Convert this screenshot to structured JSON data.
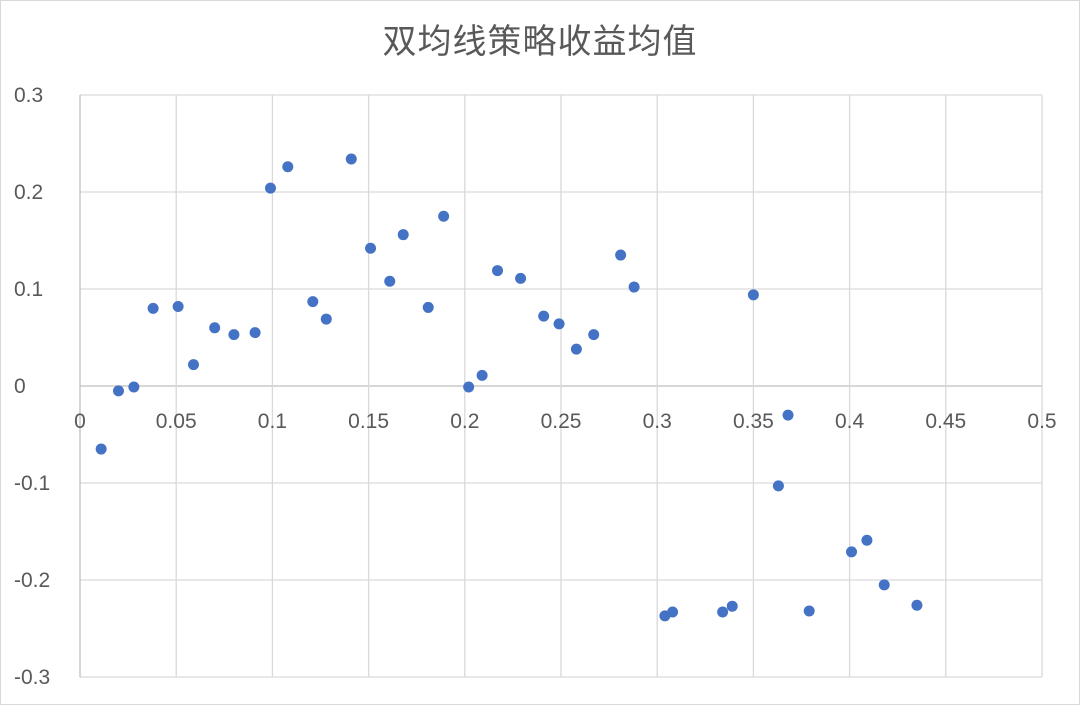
{
  "chart_data": {
    "type": "scatter",
    "title": "双均线策略收益均值",
    "xlabel": "",
    "ylabel": "",
    "xlim": [
      0,
      0.5
    ],
    "ylim": [
      -0.3,
      0.3
    ],
    "x_ticks": [
      "0",
      "0.05",
      "0.1",
      "0.15",
      "0.2",
      "0.25",
      "0.3",
      "0.35",
      "0.4",
      "0.45",
      "0.5"
    ],
    "y_ticks": [
      "0.3",
      "0.2",
      "0.1",
      "0",
      "-0.1",
      "-0.2",
      "-0.3"
    ],
    "grid": true,
    "legend": "none",
    "colors": {
      "marker": "#4472c4",
      "grid": "#d9d9d9",
      "text": "#595959"
    },
    "series": [
      {
        "points": [
          [
            0.011,
            -0.065
          ],
          [
            0.02,
            -0.005
          ],
          [
            0.028,
            -0.001
          ],
          [
            0.038,
            0.08
          ],
          [
            0.051,
            0.082
          ],
          [
            0.059,
            0.022
          ],
          [
            0.07,
            0.06
          ],
          [
            0.08,
            0.053
          ],
          [
            0.091,
            0.055
          ],
          [
            0.099,
            0.204
          ],
          [
            0.108,
            0.226
          ],
          [
            0.121,
            0.087
          ],
          [
            0.128,
            0.069
          ],
          [
            0.141,
            0.234
          ],
          [
            0.151,
            0.142
          ],
          [
            0.161,
            0.108
          ],
          [
            0.168,
            0.156
          ],
          [
            0.181,
            0.081
          ],
          [
            0.189,
            0.175
          ],
          [
            0.202,
            -0.001
          ],
          [
            0.209,
            0.011
          ],
          [
            0.217,
            0.119
          ],
          [
            0.229,
            0.111
          ],
          [
            0.241,
            0.072
          ],
          [
            0.249,
            0.064
          ],
          [
            0.258,
            0.038
          ],
          [
            0.267,
            0.053
          ],
          [
            0.281,
            0.135
          ],
          [
            0.288,
            0.102
          ],
          [
            0.304,
            -0.237
          ],
          [
            0.308,
            -0.233
          ],
          [
            0.334,
            -0.233
          ],
          [
            0.339,
            -0.227
          ],
          [
            0.35,
            0.094
          ],
          [
            0.363,
            -0.103
          ],
          [
            0.368,
            -0.03
          ],
          [
            0.379,
            -0.232
          ],
          [
            0.401,
            -0.171
          ],
          [
            0.409,
            -0.159
          ],
          [
            0.418,
            -0.205
          ],
          [
            0.435,
            -0.226
          ]
        ]
      }
    ]
  }
}
